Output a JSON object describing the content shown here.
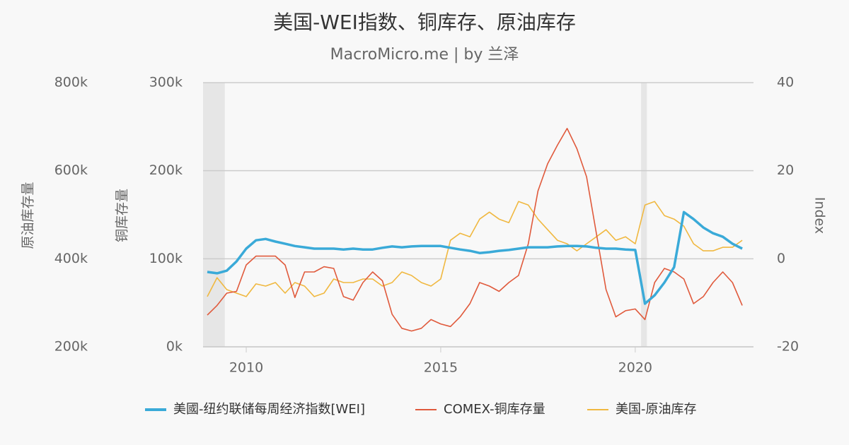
{
  "chart_data": {
    "type": "line",
    "title": "美国-WEI指数、铜库存、原油库存",
    "subtitle": "MacroMicro.me | by 兰泽",
    "y3_label": "原油库存量",
    "y_label": "铜库存量",
    "y2_label": "Index",
    "xlim": [
      2008.89,
      2023.04
    ],
    "xticks": [
      2010,
      2015,
      2020
    ],
    "ylim": [
      0,
      300000
    ],
    "yticks": [
      {
        "value": 0,
        "label": "0k"
      },
      {
        "value": 100000,
        "label": "100k"
      },
      {
        "value": 200000,
        "label": "200k"
      },
      {
        "value": 300000,
        "label": "300k"
      }
    ],
    "y3lim": [
      200000,
      800000
    ],
    "y3ticks": [
      {
        "value": 200000,
        "label": "200k"
      },
      {
        "value": 400000,
        "label": "400k"
      },
      {
        "value": 600000,
        "label": "600k"
      },
      {
        "value": 800000,
        "label": "800k"
      }
    ],
    "y2lim": [
      -20,
      40
    ],
    "y2ticks": [
      -20,
      0,
      20,
      40
    ],
    "grid": true,
    "shaded_ranges": [
      [
        2008.89,
        2009.45
      ],
      [
        2020.15,
        2020.3
      ]
    ],
    "x": [
      2009,
      2009.25,
      2009.5,
      2009.75,
      2010,
      2010.25,
      2010.5,
      2010.75,
      2011,
      2011.25,
      2011.5,
      2011.75,
      2012,
      2012.25,
      2012.5,
      2012.75,
      2013,
      2013.25,
      2013.5,
      2013.75,
      2014,
      2014.25,
      2014.5,
      2014.75,
      2015,
      2015.25,
      2015.5,
      2015.75,
      2016,
      2016.25,
      2016.5,
      2016.75,
      2017,
      2017.25,
      2017.5,
      2017.75,
      2018,
      2018.25,
      2018.5,
      2018.75,
      2019,
      2019.25,
      2019.5,
      2019.75,
      2020,
      2020.25,
      2020.5,
      2020.75,
      2021,
      2021.25,
      2021.5,
      2021.75,
      2022,
      2022.25,
      2022.5,
      2022.75
    ],
    "series": [
      {
        "name": "美國-纽约联储每周经济指数[WEI]",
        "color": "#3aaad8",
        "axis": "y2",
        "values": [
          -3,
          -3.3,
          -2.7,
          -0.6,
          2.3,
          4.2,
          4.5,
          3.9,
          3.4,
          2.9,
          2.6,
          2.3,
          2.3,
          2.3,
          2.1,
          2.3,
          2.1,
          2.1,
          2.5,
          2.8,
          2.6,
          2.8,
          2.9,
          2.9,
          2.9,
          2.5,
          2.1,
          1.8,
          1.3,
          1.5,
          1.8,
          2.0,
          2.3,
          2.6,
          2.6,
          2.6,
          2.8,
          2.9,
          2.9,
          2.8,
          2.5,
          2.3,
          2.3,
          2.1,
          2.0,
          -10.2,
          -8.3,
          -5.4,
          -1.9,
          10.6,
          9.0,
          7.1,
          5.8,
          5.0,
          3.4,
          2.3
        ]
      },
      {
        "name": "COMEX-铜库存量",
        "color": "#e05a3c",
        "axis": "y",
        "values": [
          36000,
          47000,
          61000,
          63000,
          93000,
          103000,
          103000,
          103000,
          93000,
          56000,
          85000,
          85000,
          91000,
          89000,
          57000,
          53000,
          73000,
          85000,
          75000,
          37000,
          21000,
          18000,
          21000,
          31000,
          26000,
          23000,
          34000,
          49000,
          73000,
          69000,
          63000,
          73000,
          81000,
          117000,
          177000,
          208000,
          229000,
          248000,
          225000,
          193000,
          129000,
          65000,
          34000,
          41000,
          43000,
          31000,
          73000,
          89000,
          85000,
          77000,
          49000,
          57000,
          73000,
          85000,
          73000,
          47000
        ]
      },
      {
        "name": "美国-原油库存",
        "color": "#f0b840",
        "axis": "y3",
        "values": [
          314000,
          357000,
          330000,
          322000,
          314000,
          343000,
          338000,
          346000,
          322000,
          346000,
          338000,
          314000,
          322000,
          354000,
          346000,
          346000,
          354000,
          354000,
          338000,
          346000,
          370000,
          362000,
          346000,
          338000,
          354000,
          442000,
          458000,
          450000,
          490000,
          506000,
          490000,
          482000,
          530000,
          522000,
          490000,
          466000,
          442000,
          434000,
          418000,
          434000,
          450000,
          466000,
          442000,
          450000,
          434000,
          522000,
          530000,
          498000,
          490000,
          474000,
          434000,
          418000,
          418000,
          426000,
          426000,
          442000
        ]
      }
    ]
  }
}
